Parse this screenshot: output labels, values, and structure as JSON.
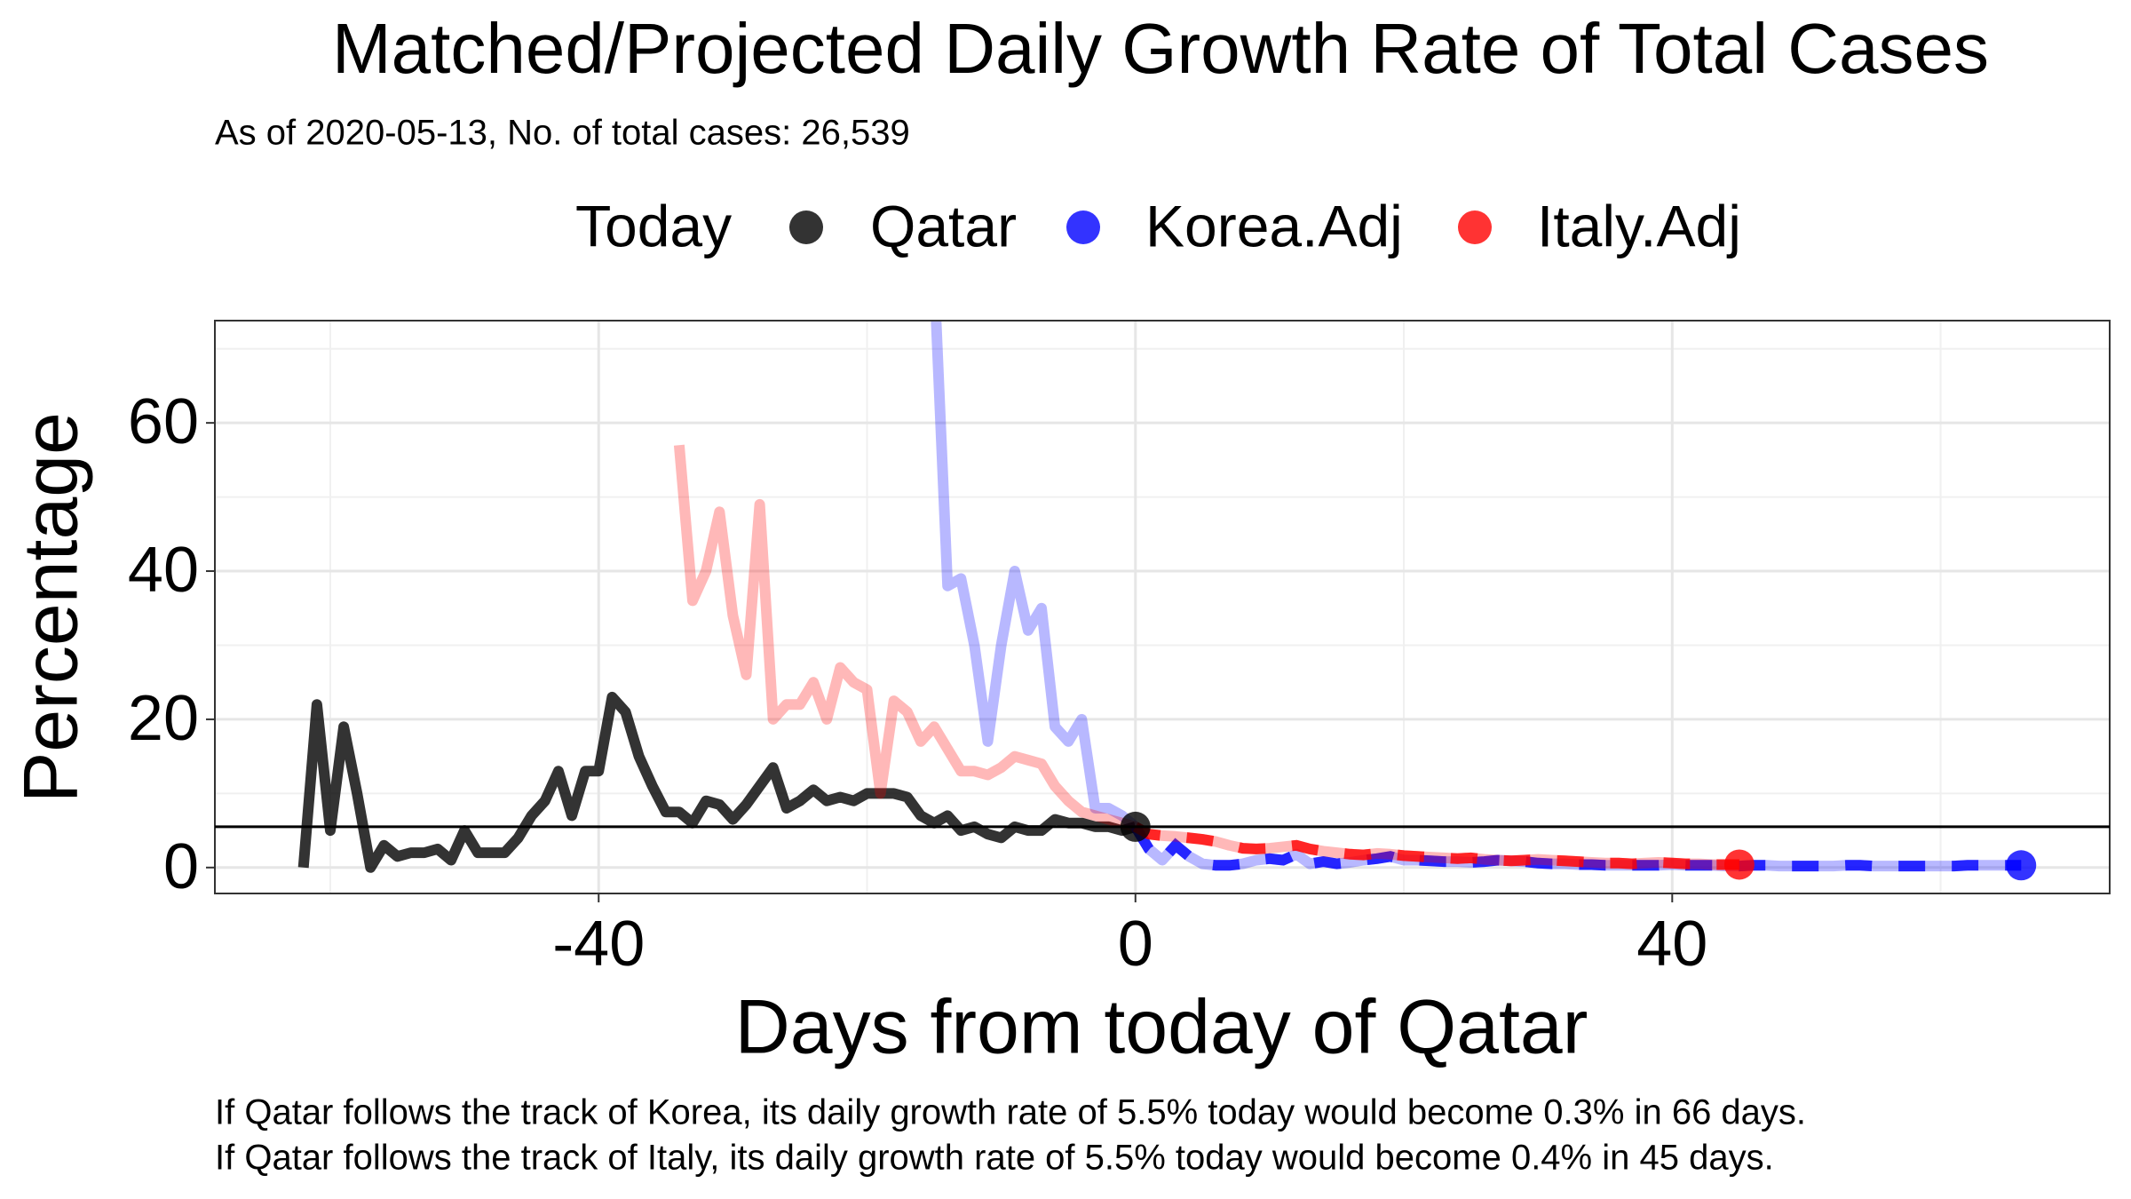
{
  "chart_data": {
    "type": "line",
    "title": "Matched/Projected Daily Growth Rate of Total Cases",
    "subtitle": "As of 2020-05-13, No. of total cases: 26,539",
    "legend_title": "Today",
    "x_label": "Days from today of Qatar",
    "y_label": "Percentage",
    "notes": [
      "If Qatar follows the track of Korea, its daily growth rate of 5.5% today would become 0.3% in 66 days.",
      "If Qatar follows the track of Italy, its daily growth rate of 5.5% today would become 0.4% in 45 days."
    ],
    "xlim": [
      -68.6,
      72.6
    ],
    "ylim": [
      -3.5,
      73.8
    ],
    "xticks": [
      -40,
      0,
      40
    ],
    "yticks": [
      0,
      20,
      40,
      60
    ],
    "grid": true,
    "hline": 5.5,
    "series": [
      {
        "name": "Qatar",
        "color": "#000000",
        "x": [
          -62,
          -61,
          -60,
          -59,
          -58,
          -57,
          -56,
          -55,
          -54,
          -53,
          -52,
          -51,
          -50,
          -49,
          -48,
          -47,
          -46,
          -45,
          -44,
          -43,
          -42,
          -41,
          -40,
          -39,
          -38,
          -37,
          -36,
          -35,
          -34,
          -33,
          -32,
          -31,
          -30,
          -29,
          -28,
          -27,
          -26,
          -25,
          -24,
          -23,
          -22,
          -21,
          -20,
          -19,
          -18,
          -17,
          -16,
          -15,
          -14,
          -13,
          -12,
          -11,
          -10,
          -9,
          -8,
          -7,
          -6,
          -5,
          -4,
          -3,
          -2,
          -1,
          0
        ],
        "values": [
          0,
          22,
          5,
          19,
          10,
          0,
          3,
          1.5,
          2,
          2,
          2.5,
          1,
          5,
          2,
          2,
          2,
          4,
          7,
          9,
          13,
          7,
          13,
          13,
          23,
          21,
          15,
          11,
          7.5,
          7.5,
          6,
          9,
          8.5,
          6.5,
          8.5,
          11,
          13.5,
          8,
          9,
          10.5,
          9,
          9.5,
          9,
          10,
          10,
          10,
          9.5,
          7,
          6,
          7,
          5,
          5.5,
          4.5,
          4,
          5.5,
          5,
          5,
          6.5,
          6,
          6,
          5.5,
          5.5,
          5,
          5.5
        ]
      },
      {
        "name": "Korea.Adj",
        "color": "#0000ff",
        "x": [
          -15,
          -14,
          -13,
          -12,
          -11,
          -10,
          -9,
          -8,
          -7,
          -6,
          -5,
          -4,
          -3,
          -2,
          -1,
          0,
          1,
          2,
          3,
          4,
          5,
          6,
          7,
          8,
          9,
          10,
          11,
          12,
          13,
          14,
          15,
          16,
          17,
          18,
          19,
          20,
          21,
          22,
          23,
          24,
          25,
          26,
          27,
          28,
          29,
          30,
          31,
          32,
          33,
          34,
          35,
          36,
          37,
          38,
          39,
          40,
          41,
          42,
          43,
          44,
          45,
          46,
          47,
          48,
          49,
          50,
          51,
          52,
          53,
          54,
          55,
          56,
          57,
          58,
          59,
          60,
          61,
          62,
          63,
          64,
          65,
          66
        ],
        "values": [
          80,
          38,
          39,
          30,
          17,
          30,
          40,
          32,
          35,
          19,
          17,
          20,
          8,
          8,
          7,
          5.5,
          2.5,
          1,
          3,
          1.5,
          0.5,
          0.3,
          0.3,
          0.5,
          1,
          1.2,
          1,
          1.8,
          0.5,
          0.8,
          0.5,
          0.7,
          1,
          1.2,
          1.5,
          1,
          1,
          0.9,
          0.8,
          0.8,
          0.7,
          0.8,
          1,
          0.9,
          0.8,
          0.6,
          0.5,
          0.5,
          0.4,
          0.4,
          0.3,
          0.3,
          0.3,
          0.3,
          0.3,
          0.4,
          0.3,
          0.3,
          0.3,
          0.2,
          0.2,
          0.3,
          0.3,
          0.2,
          0.2,
          0.2,
          0.2,
          0.2,
          0.3,
          0.3,
          0.2,
          0.2,
          0.2,
          0.2,
          0.2,
          0.2,
          0.2,
          0.3,
          0.3,
          0.3,
          0.3,
          0.3
        ]
      },
      {
        "name": "Italy.Adj",
        "color": "#ff0000",
        "x": [
          -34,
          -33,
          -32,
          -31,
          -30,
          -29,
          -28,
          -27,
          -26,
          -25,
          -24,
          -23,
          -22,
          -21,
          -20,
          -19,
          -18,
          -17,
          -16,
          -15,
          -14,
          -13,
          -12,
          -11,
          -10,
          -9,
          -8,
          -7,
          -6,
          -5,
          -4,
          -3,
          -2,
          -1,
          0,
          1,
          2,
          3,
          4,
          5,
          6,
          7,
          8,
          9,
          10,
          11,
          12,
          13,
          14,
          15,
          16,
          17,
          18,
          19,
          20,
          21,
          22,
          23,
          24,
          25,
          26,
          27,
          28,
          29,
          30,
          31,
          32,
          33,
          34,
          35,
          36,
          37,
          38,
          39,
          40,
          41,
          42,
          43,
          44,
          45
        ],
        "values": [
          57,
          36,
          40,
          48,
          34,
          26,
          49,
          20,
          22,
          22,
          25,
          20,
          27,
          25,
          24,
          10,
          22.5,
          21,
          17,
          19,
          16,
          13,
          13,
          12.5,
          13.5,
          15,
          14.5,
          14,
          11,
          9,
          7.5,
          7,
          6.5,
          6,
          5.5,
          4.5,
          4.3,
          4.2,
          4,
          3.8,
          3.5,
          3,
          2.6,
          2.5,
          2.6,
          2.8,
          3,
          2.5,
          2.2,
          2,
          1.8,
          1.7,
          1.9,
          1.8,
          1.6,
          1.5,
          1.4,
          1.3,
          1.2,
          1.3,
          1.1,
          1,
          0.9,
          1,
          1.1,
          1,
          0.9,
          0.8,
          0.7,
          0.6,
          0.6,
          0.5,
          0.6,
          0.7,
          0.6,
          0.5,
          0.5,
          0.4,
          0.4,
          0.4
        ]
      }
    ]
  }
}
